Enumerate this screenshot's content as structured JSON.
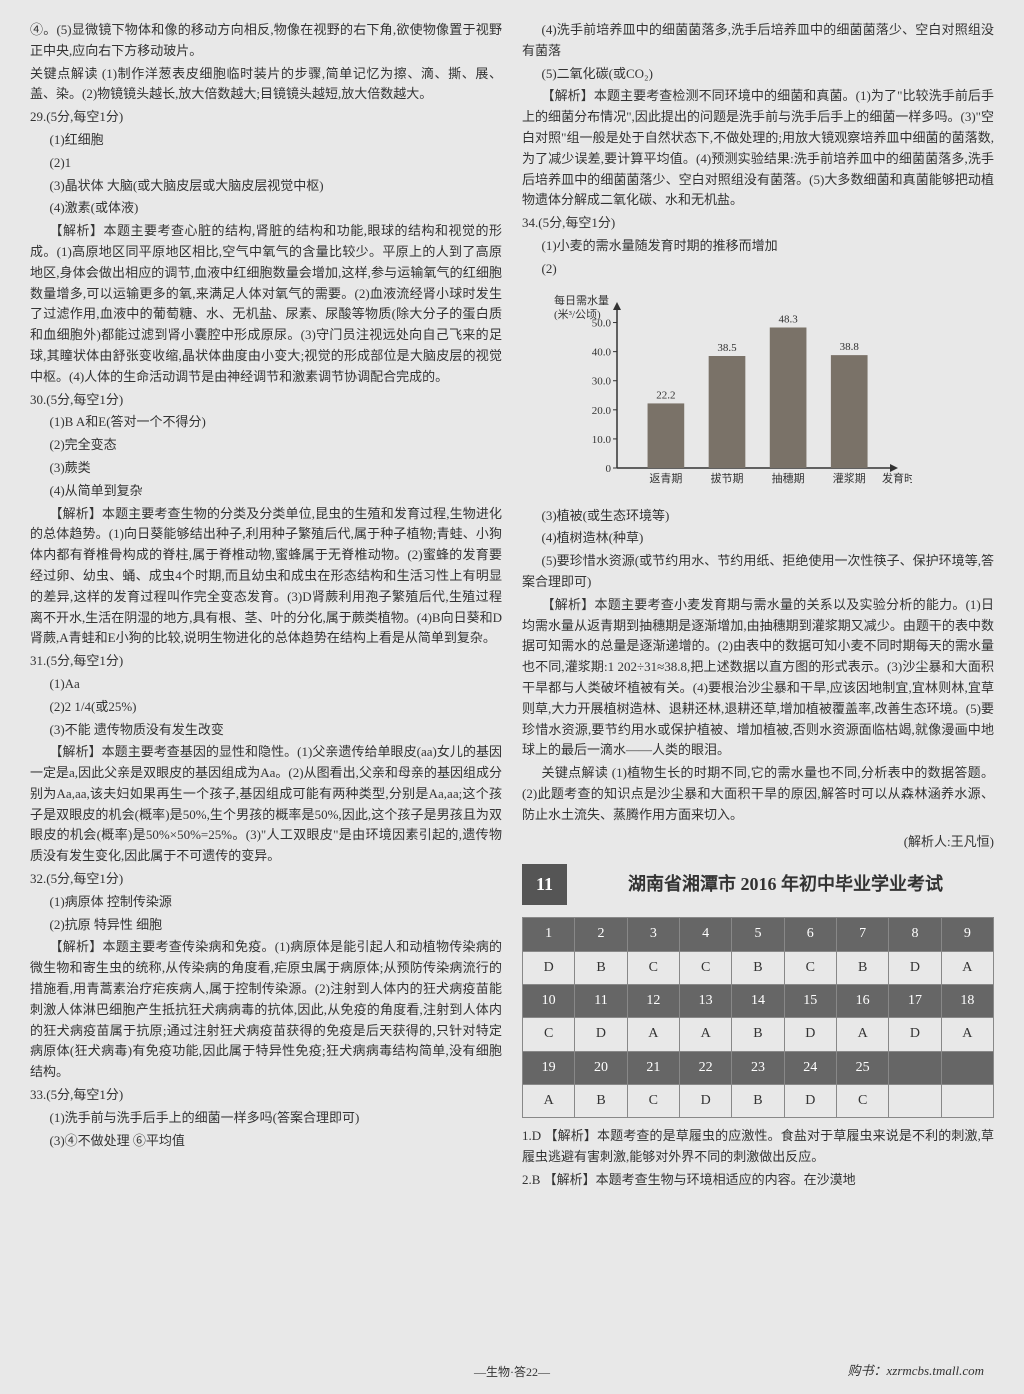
{
  "leftCol": {
    "p1": "④。(5)显微镜下物体和像的移动方向相反,物像在视野的右下角,欲使物像置于视野正中央,应向右下方移动玻片。",
    "p2": "关键点解读 (1)制作洋葱表皮细胞临时装片的步骤,简单记忆为擦、滴、撕、展、盖、染。(2)物镜镜头越长,放大倍数越大;目镜镜头越短,放大倍数越大。",
    "q29": "29.(5分,每空1分)",
    "q29_1": "(1)红细胞",
    "q29_2": "(2)1",
    "q29_3": "(3)晶状体  大脑(或大脑皮层或大脑皮层视觉中枢)",
    "q29_4": "(4)激素(或体液)",
    "q29_ex": "【解析】本题主要考查心脏的结构,肾脏的结构和功能,眼球的结构和视觉的形成。(1)高原地区同平原地区相比,空气中氧气的含量比较少。平原上的人到了高原地区,身体会做出相应的调节,血液中红细胞数量会增加,这样,参与运输氧气的红细胞数量增多,可以运输更多的氧,来满足人体对氧气的需要。(2)血液流经肾小球时发生了过滤作用,血液中的葡萄糖、水、无机盐、尿素、尿酸等物质(除大分子的蛋白质和血细胞外)都能过滤到肾小囊腔中形成原尿。(3)守门员注视远处向自己飞来的足球,其瞳状体由舒张变收缩,晶状体曲度由小变大;视觉的形成部位是大脑皮层的视觉中枢。(4)人体的生命活动调节是由神经调节和激素调节协调配合完成的。",
    "q30": "30.(5分,每空1分)",
    "q30_1": "(1)B  A和E(答对一个不得分)",
    "q30_2": "(2)完全变态",
    "q30_3": "(3)蕨类",
    "q30_4": "(4)从简单到复杂",
    "q30_ex": "【解析】本题主要考查生物的分类及分类单位,昆虫的生殖和发育过程,生物进化的总体趋势。(1)向日葵能够结出种子,利用种子繁殖后代,属于种子植物;青蛙、小狗体内都有脊椎骨构成的脊柱,属于脊椎动物,蜜蜂属于无脊椎动物。(2)蜜蜂的发育要经过卵、幼虫、蛹、成虫4个时期,而且幼虫和成虫在形态结构和生活习性上有明显的差异,这样的发育过程叫作完全变态发育。(3)D肾蕨利用孢子繁殖后代,生殖过程离不开水,生活在阴湿的地方,具有根、茎、叶的分化,属于蕨类植物。(4)B向日葵和D肾蕨,A青蛙和E小狗的比较,说明生物进化的总体趋势在结构上看是从简单到复杂。",
    "q31": "31.(5分,每空1分)",
    "q31_1": "(1)Aa",
    "q31_2": "(2)2  1/4(或25%)",
    "q31_3": "(3)不能  遗传物质没有发生改变",
    "q31_ex": "【解析】本题主要考查基因的显性和隐性。(1)父亲遗传给单眼皮(aa)女儿的基因一定是a,因此父亲是双眼皮的基因组成为Aa。(2)从图看出,父亲和母亲的基因组成分别为Aa,aa,该夫妇如果再生一个孩子,基因组成可能有两种类型,分别是Aa,aa;这个孩子是双眼皮的机会(概率)是50%,生个男孩的概率是50%,因此,这个孩子是男孩且为双眼皮的机会(概率)是50%×50%=25%。(3)\"人工双眼皮\"是由环境因素引起的,遗传物质没有发生变化,因此属于不可遗传的变异。",
    "q32": "32.(5分,每空1分)",
    "q32_1": "(1)病原体  控制传染源",
    "q32_2": "(2)抗原  特异性  细胞",
    "q32_ex": "【解析】本题主要考查传染病和免疫。(1)病原体是能引起人和动植物传染病的微生物和寄生虫的统称,从传染病的角度看,疟原虫属于病原体;从预防传染病流行的措施看,用青蒿素治疗疟疾病人,属于控制传染源。(2)注射到人体内的狂犬病疫苗能刺激人体淋巴细胞产生抵抗狂犬病病毒的抗体,因此,从免疫的角度看,注射到人体内的狂犬病疫苗属于抗原;通过注射狂犬病疫苗获得的免疫是后天获得的,只针对特定病原体(狂犬病毒)有免疫功能,因此属于特异性免疫;狂犬病病毒结构简单,没有细胞结构。",
    "q33": "33.(5分,每空1分)",
    "q33_1": "(1)洗手前与洗手后手上的细菌一样多吗(答案合理即可)",
    "q33_2": "(3)④不做处理  ⑥平均值"
  },
  "rightCol": {
    "p1": "(4)洗手前培养皿中的细菌菌落多,洗手后培养皿中的细菌菌落少、空白对照组没有菌落",
    "p2": "(5)二氧化碳(或CO₂)",
    "ex1": "【解析】本题主要考查检测不同环境中的细菌和真菌。(1)为了\"比较洗手前后手上的细菌分布情况\",因此提出的问题是洗手前与洗手后手上的细菌一样多吗。(3)\"空白对照\"组一般是处于自然状态下,不做处理的;用放大镜观察培养皿中细菌的菌落数,为了减少误差,要计算平均值。(4)预测实验结果:洗手前培养皿中的细菌菌落多,洗手后培养皿中的细菌菌落少、空白对照组没有菌落。(5)大多数细菌和真菌能够把动植物遗体分解成二氧化碳、水和无机盐。",
    "q34": "34.(5分,每空1分)",
    "q34_1": "(1)小麦的需水量随发育时期的推移而增加",
    "q34_2": "(2)",
    "q34_3": "(3)植被(或生态环境等)",
    "q34_4": "(4)植树造林(种草)",
    "q34_5": "(5)要珍惜水资源(或节约用水、节约用纸、拒绝使用一次性筷子、保护环境等,答案合理即可)",
    "q34_ex": "【解析】本题主要考查小麦发育期与需水量的关系以及实验分析的能力。(1)日均需水量从返青期到抽穗期是逐渐增加,由抽穗期到灌浆期又减少。由题干的表中数据可知需水的总量是逐渐递增的。(2)由表中的数据可知小麦不同时期每天的需水量也不同,灌浆期:1 202÷31≈38.8,把上述数据以直方图的形式表示。(3)沙尘暴和大面积干旱都与人类破坏植被有关。(4)要根治沙尘暴和干旱,应该因地制宜,宜林则林,宜草则草,大力开展植树造林、退耕还林,退耕还草,增加植被覆盖率,改善生态环境。(5)要珍惜水资源,要节约用水或保护植被、增加植被,否则水资源面临枯竭,就像漫画中地球上的最后一滴水——人类的眼泪。",
    "key": "关键点解读 (1)植物生长的时期不同,它的需水量也不同,分析表中的数据答题。(2)此题考查的知识点是沙尘暴和大面积干旱的原因,解答时可以从森林涵养水源、防止水土流失、蒸腾作用方面来切入。",
    "author": "(解析人:王凡恒)",
    "sec_num": "11",
    "sec_text": "湖南省湘潭市 2016 年初中毕业学业考试",
    "t_h1": [
      "1",
      "2",
      "3",
      "4",
      "5",
      "6",
      "7",
      "8",
      "9"
    ],
    "t_r1": [
      "D",
      "B",
      "C",
      "C",
      "B",
      "C",
      "B",
      "D",
      "A"
    ],
    "t_h2": [
      "10",
      "11",
      "12",
      "13",
      "14",
      "15",
      "16",
      "17",
      "18"
    ],
    "t_r2": [
      "C",
      "D",
      "A",
      "A",
      "B",
      "D",
      "A",
      "D",
      "A"
    ],
    "t_h3": [
      "19",
      "20",
      "21",
      "22",
      "23",
      "24",
      "25",
      "",
      ""
    ],
    "t_r3": [
      "A",
      "B",
      "C",
      "D",
      "B",
      "D",
      "C",
      "",
      ""
    ],
    "ex_1": "1.D 【解析】本题考查的是草履虫的应激性。食盐对于草履虫来说是不利的刺激,草履虫逃避有害刺激,能够对外界不同的刺激做出反应。",
    "ex_2": "2.B 【解析】本题考查生物与环境相适应的内容。在沙漠地"
  },
  "chart": {
    "ylabel1": "每日需水量",
    "ylabel2": "(米³/公顷)",
    "yticks": [
      "0",
      "10.0",
      "20.0",
      "30.0",
      "40.0",
      "50.0"
    ],
    "xlabel": "发育时期",
    "categories": [
      "返青期",
      "拔节期",
      "抽穗期",
      "灌浆期"
    ],
    "values": [
      22.2,
      38.5,
      48.3,
      38.8
    ],
    "labels": [
      "22.2",
      "38.5",
      "48.3",
      "38.8"
    ],
    "bar_color": "#7a7268",
    "axis_color": "#333333",
    "ymax": 55
  },
  "footer": "—生物·答22—",
  "footer_right": "购书：xzrmcbs.tmall.com"
}
